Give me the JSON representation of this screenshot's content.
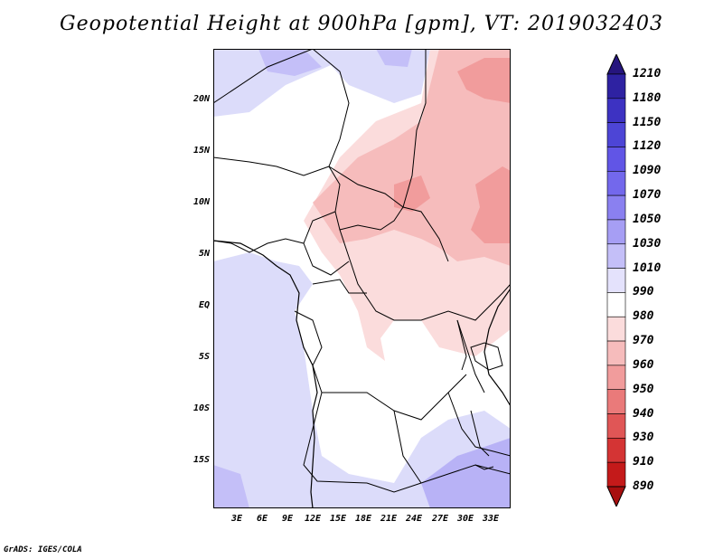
{
  "title": "Geopotential Height at 900hPa [gpm], VT: 2019032403",
  "credit": "GrADS: IGES/COLA",
  "map": {
    "lat_labels": [
      "20N",
      "15N",
      "10N",
      "5N",
      "EQ",
      "5S",
      "10S",
      "15S"
    ],
    "lon_labels": [
      "3E",
      "6E",
      "9E",
      "12E",
      "15E",
      "18E",
      "21E",
      "24E",
      "27E",
      "30E",
      "33E"
    ],
    "region": "Central Africa"
  },
  "colorbar": {
    "labels": [
      "1210",
      "1180",
      "1150",
      "1120",
      "1090",
      "1070",
      "1050",
      "1030",
      "1010",
      "990",
      "980",
      "970",
      "960",
      "950",
      "940",
      "930",
      "910",
      "890"
    ],
    "colors": [
      "#26157e",
      "#2e22a2",
      "#3d32c2",
      "#4d45d6",
      "#6155e6",
      "#7368ec",
      "#8a80f0",
      "#a69ef4",
      "#c4bff8",
      "#e4e2fc",
      "#ffffff",
      "#fbdcdc",
      "#f6bcbc",
      "#f19c9c",
      "#ea7a7a",
      "#e05656",
      "#d43434",
      "#c41a1a",
      "#a80f0f"
    ]
  },
  "chart_data": {
    "type": "heatmap",
    "title": "Geopotential Height at 900hPa [gpm], VT: 2019032403",
    "colorbar_levels": [
      1210,
      1180,
      1150,
      1120,
      1090,
      1070,
      1050,
      1030,
      1010,
      990,
      980,
      970,
      960,
      950,
      940,
      930,
      910,
      890
    ],
    "x_ticks": [
      "3E",
      "6E",
      "9E",
      "12E",
      "15E",
      "18E",
      "21E",
      "24E",
      "27E",
      "30E",
      "33E"
    ],
    "y_ticks": [
      "20N",
      "15N",
      "10N",
      "5N",
      "EQ",
      "5S",
      "10S",
      "15S"
    ]
  }
}
